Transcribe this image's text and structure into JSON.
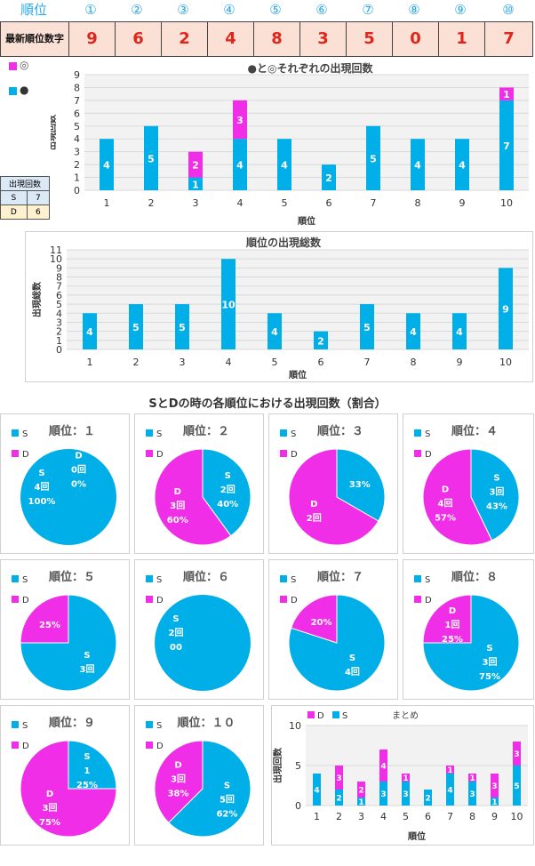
{
  "header": {
    "rank_label": "順位",
    "ranks": [
      "①",
      "②",
      "③",
      "④",
      "⑤",
      "⑥",
      "⑦",
      "⑧",
      "⑨",
      "⑩"
    ]
  },
  "latest": {
    "label": "最新順位数字",
    "digits": [
      "9",
      "6",
      "2",
      "4",
      "8",
      "3",
      "5",
      "0",
      "1",
      "7"
    ]
  },
  "mini_table": {
    "header": "出現回数",
    "rows": [
      {
        "key": "S",
        "value": "7",
        "bg": "#dbe8f6"
      },
      {
        "key": "D",
        "value": "6",
        "bg": "#fdf1cf"
      }
    ]
  },
  "legend_top": {
    "items": [
      {
        "marker": "◎",
        "color": "#f02ee8"
      },
      {
        "marker": "●",
        "color": "#00aee8"
      }
    ]
  },
  "section_title": "SとDの時の各順位における出現回数（割合）",
  "colors": {
    "cyan": "#00aee8",
    "magenta": "#f02ee8",
    "grid": "#d9d9d9",
    "plot_bg": "#f2f2f2"
  },
  "chart_data": [
    {
      "type": "bar",
      "title": "●と◎それぞれの出現回数",
      "categories": [
        "1",
        "2",
        "3",
        "4",
        "5",
        "6",
        "7",
        "8",
        "9",
        "10"
      ],
      "xlabel": "順位",
      "ylabel": "出現回数",
      "ylim": [
        0,
        9
      ],
      "stacked": true,
      "series": [
        {
          "name": "●",
          "values": [
            4,
            5,
            1,
            4,
            4,
            2,
            5,
            4,
            4,
            7
          ]
        },
        {
          "name": "◎",
          "values": [
            0,
            0,
            2,
            3,
            0,
            0,
            0,
            0,
            0,
            1
          ]
        }
      ]
    },
    {
      "type": "bar",
      "title": "順位の出現総数",
      "categories": [
        "1",
        "2",
        "3",
        "4",
        "5",
        "6",
        "7",
        "8",
        "9",
        "10"
      ],
      "xlabel": "順位",
      "ylabel": "出現総数",
      "ylim": [
        0,
        11
      ],
      "series": [
        {
          "values": [
            4,
            5,
            5,
            10,
            4,
            2,
            5,
            4,
            4,
            9
          ]
        }
      ]
    },
    {
      "type": "pie",
      "title": "順位：１",
      "legend": [
        "S",
        "D"
      ],
      "slices": [
        {
          "name": "S",
          "value": 4,
          "count": "4回",
          "pct": "100%"
        },
        {
          "name": "D",
          "value": 0,
          "count": "0回",
          "pct": "0%"
        }
      ]
    },
    {
      "type": "pie",
      "title": "順位：２",
      "legend": [
        "S",
        "D"
      ],
      "slices": [
        {
          "name": "S",
          "value": 2,
          "count": "2回",
          "pct": "40%"
        },
        {
          "name": "D",
          "value": 3,
          "count": "3回",
          "pct": "60%"
        }
      ]
    },
    {
      "type": "pie",
      "title": "順位：３",
      "legend": [
        "S",
        "D"
      ],
      "slices": [
        {
          "name": "S",
          "value": 1,
          "count": "",
          "pct": "33%"
        },
        {
          "name": "D",
          "value": 2,
          "count": "2回",
          "pct": ""
        }
      ]
    },
    {
      "type": "pie",
      "title": "順位：４",
      "legend": [
        "S",
        "D"
      ],
      "slices": [
        {
          "name": "S",
          "value": 3,
          "count": "3回",
          "pct": "43%"
        },
        {
          "name": "D",
          "value": 4,
          "count": "4回",
          "pct": "57%"
        }
      ]
    },
    {
      "type": "pie",
      "title": "順位：５",
      "legend": [
        "S",
        "D"
      ],
      "slices": [
        {
          "name": "S",
          "value": 3,
          "count": "3回",
          "pct": ""
        },
        {
          "name": "D",
          "value": 1,
          "count": "",
          "pct": "25%"
        }
      ]
    },
    {
      "type": "pie",
      "title": "順位：６",
      "legend": [
        "S",
        "D"
      ],
      "slices": [
        {
          "name": "S",
          "value": 2,
          "count": "2回",
          "pct": "00"
        },
        {
          "name": "D",
          "value": 0,
          "count": "",
          "pct": ""
        }
      ]
    },
    {
      "type": "pie",
      "title": "順位：７",
      "legend": [
        "S",
        "D"
      ],
      "slices": [
        {
          "name": "S",
          "value": 4,
          "count": "4回",
          "pct": ""
        },
        {
          "name": "D",
          "value": 1,
          "count": "",
          "pct": "20%"
        }
      ]
    },
    {
      "type": "pie",
      "title": "順位：８",
      "legend": [
        "S",
        "D"
      ],
      "slices": [
        {
          "name": "S",
          "value": 3,
          "count": "3回",
          "pct": "75%"
        },
        {
          "name": "D",
          "value": 1,
          "count": "1回",
          "pct": "25%"
        }
      ]
    },
    {
      "type": "pie",
      "title": "順位：９",
      "legend": [
        "S",
        "D"
      ],
      "slices": [
        {
          "name": "S",
          "value": 1,
          "count": "1",
          "pct": "25%"
        },
        {
          "name": "D",
          "value": 3,
          "count": "3回",
          "pct": "75%"
        }
      ]
    },
    {
      "type": "pie",
      "title": "順位：１０",
      "legend": [
        "S",
        "D"
      ],
      "slices": [
        {
          "name": "S",
          "value": 5,
          "count": "5回",
          "pct": "62%"
        },
        {
          "name": "D",
          "value": 3,
          "count": "3回",
          "pct": "38%"
        }
      ]
    },
    {
      "type": "bar",
      "title": "まとめ",
      "legend": [
        "D",
        "S"
      ],
      "categories": [
        "1",
        "2",
        "3",
        "4",
        "5",
        "6",
        "7",
        "8",
        "9",
        "10"
      ],
      "xlabel": "順位",
      "ylabel": "出現回数",
      "ylim": [
        0,
        10
      ],
      "yticks": [
        0,
        5,
        10
      ],
      "stacked": true,
      "series": [
        {
          "name": "S",
          "values": [
            4,
            2,
            1,
            3,
            3,
            2,
            4,
            3,
            1,
            5
          ]
        },
        {
          "name": "D",
          "values": [
            0,
            3,
            2,
            4,
            1,
            0,
            1,
            1,
            3,
            3
          ]
        }
      ]
    }
  ]
}
